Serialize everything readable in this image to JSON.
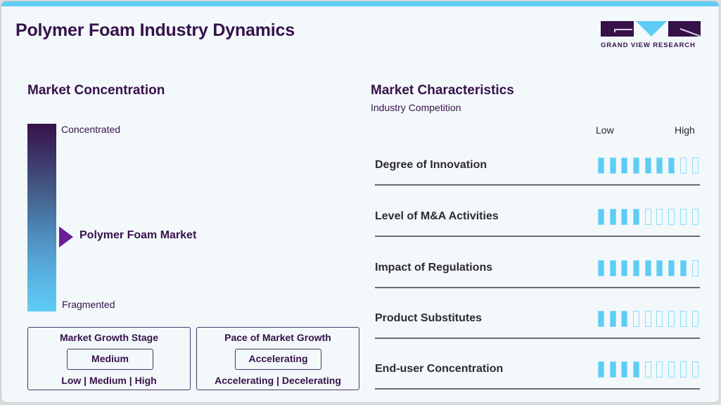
{
  "header": {
    "title": "Polymer Foam Industry Dynamics",
    "logo": {
      "text": "GRAND VIEW RESEARCH",
      "icon": "gvr-logo-icon"
    }
  },
  "colors": {
    "brand_dark": "#361249",
    "accent_blue": "#5ecdf5",
    "marker_purple": "#6a1f9a",
    "background": "#f3f8fb"
  },
  "concentration": {
    "title": "Market Concentration",
    "top_label": "Concentrated",
    "bottom_label": "Fragmented",
    "marker_label": "Polymer Foam Market",
    "marker_icon": "triangle-right-icon",
    "marker_position_pct": 60
  },
  "growth_stage": {
    "title": "Market Growth Stage",
    "value": "Medium",
    "options": "Low | Medium | High"
  },
  "growth_pace": {
    "title": "Pace of Market Growth",
    "value": "Accelerating",
    "options": "Accelerating | Decelerating"
  },
  "characteristics": {
    "title": "Market Characteristics",
    "subtitle": "Industry Competition",
    "scale_low": "Low",
    "scale_high": "High",
    "max_segments": 9,
    "rows": [
      {
        "label": "Degree of Innovation",
        "level": 7
      },
      {
        "label": "Level of M&A Activities",
        "level": 4
      },
      {
        "label": "Impact of Regulations",
        "level": 8
      },
      {
        "label": "Product Substitutes",
        "level": 3
      },
      {
        "label": "End-user Concentration",
        "level": 4
      }
    ]
  },
  "chart_data": {
    "type": "bar",
    "title": "Market Characteristics - Industry Competition",
    "categories": [
      "Degree of Innovation",
      "Level of M&A Activities",
      "Impact of Regulations",
      "Product Substitutes",
      "End-user Concentration"
    ],
    "values": [
      7,
      4,
      8,
      3,
      4
    ],
    "xlabel": "",
    "ylabel": "Level (Low to High)",
    "ylim": [
      0,
      9
    ]
  }
}
